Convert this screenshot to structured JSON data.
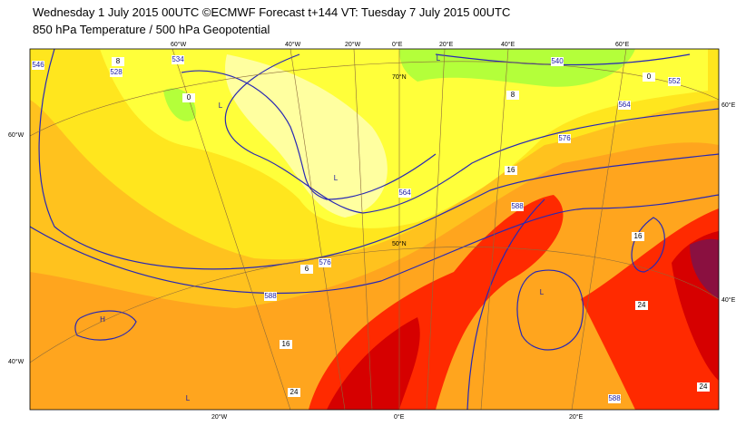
{
  "header": {
    "title": "Wednesday 1 July 2015 00UTC ©ECMWF Forecast t+144 VT: Tuesday 7 July 2015 00UTC",
    "subtitle": "850 hPa Temperature / 500 hPa Geopotential"
  },
  "grid_labels": {
    "top": [
      "60°W",
      "40°W",
      "20°W",
      "0°E",
      "20°E",
      "40°E",
      "60°E"
    ],
    "bottom": [
      "20°W",
      "0°E",
      "20°E"
    ],
    "left": [
      "60°W",
      "40°W"
    ],
    "right": [
      "60°E",
      "40°E"
    ],
    "inner": [
      "70°N",
      "50°N"
    ]
  },
  "geopotential_labels": [
    "546",
    "534",
    "528",
    "540",
    "552",
    "564",
    "576",
    "564",
    "576",
    "588",
    "588",
    "588"
  ],
  "temperature_labels": [
    "8",
    "0",
    "8",
    "0",
    "16",
    "16",
    "24",
    "6",
    "16",
    "24",
    "24"
  ],
  "pressure_centers": [
    "H",
    "L",
    "L",
    "L",
    "L",
    "L"
  ]
}
